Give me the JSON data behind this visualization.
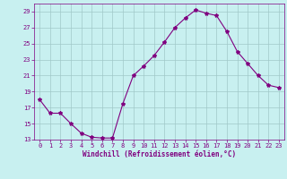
{
  "x": [
    0,
    1,
    2,
    3,
    4,
    5,
    6,
    7,
    8,
    9,
    10,
    11,
    12,
    13,
    14,
    15,
    16,
    17,
    18,
    19,
    20,
    21,
    22,
    23
  ],
  "y": [
    18.0,
    16.3,
    16.3,
    15.0,
    13.8,
    13.3,
    13.2,
    13.2,
    17.5,
    21.0,
    22.2,
    23.5,
    25.2,
    27.0,
    28.2,
    29.2,
    28.8,
    28.5,
    26.5,
    24.0,
    22.5,
    21.0,
    19.8,
    19.5
  ],
  "line_color": "#800080",
  "background_color": "#c8f0f0",
  "grid_color": "#a0c8c8",
  "xlabel": "Windchill (Refroidissement éolien,°C)",
  "xlim": [
    -0.5,
    23.5
  ],
  "ylim": [
    13,
    30
  ],
  "yticks": [
    13,
    15,
    17,
    19,
    21,
    23,
    25,
    27,
    29
  ],
  "xticks": [
    0,
    1,
    2,
    3,
    4,
    5,
    6,
    7,
    8,
    9,
    10,
    11,
    12,
    13,
    14,
    15,
    16,
    17,
    18,
    19,
    20,
    21,
    22,
    23
  ],
  "tick_color": "#800080",
  "label_color": "#800080",
  "xlabel_fontsize": 5.5,
  "xlabel_fontweight": "bold",
  "xtick_fontsize": 4.2,
  "ytick_fontsize": 5.2,
  "linewidth": 0.8,
  "markersize": 3.0
}
